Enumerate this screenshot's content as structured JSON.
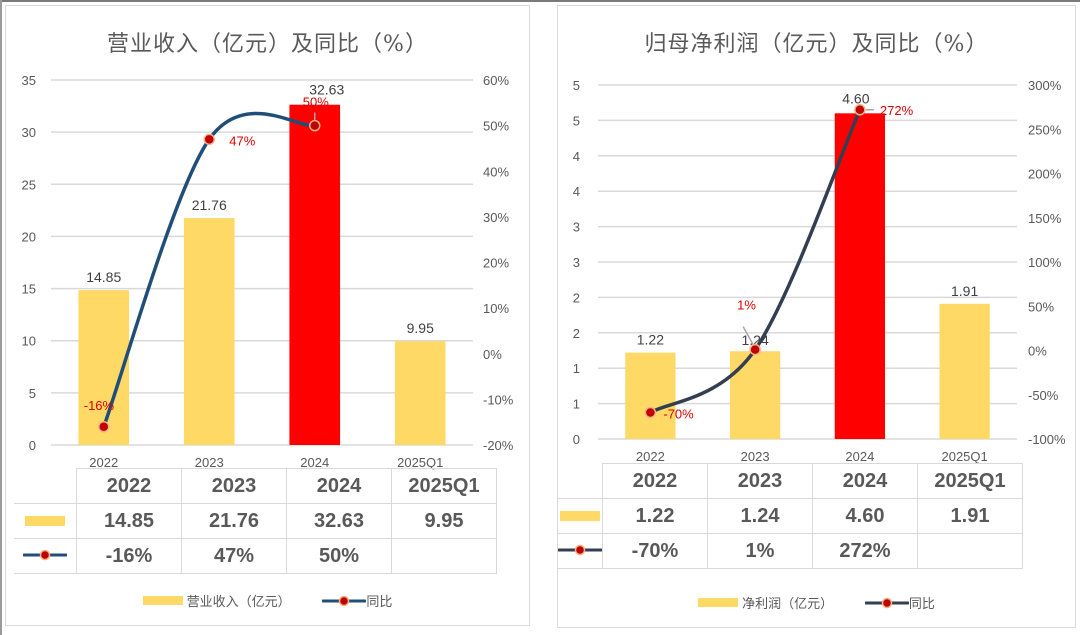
{
  "charts": {
    "left": {
      "title": "营业收入（亿元）及同比（%）",
      "categories": [
        "2022",
        "2023",
        "2024",
        "2025Q1"
      ],
      "bar_series_name": "营业收入（亿元）",
      "line_series_name": "同比",
      "bar_values": [
        14.85,
        21.76,
        32.63,
        9.95
      ],
      "bar_labels": [
        "14.85",
        "21.76",
        "32.63",
        "9.95"
      ],
      "bar_colors": [
        "#FFD966",
        "#FFD966",
        "#FF0000",
        "#FFD966"
      ],
      "line_values": [
        -16,
        47,
        50,
        null
      ],
      "line_labels": [
        "-16%",
        "47%",
        "50%",
        ""
      ],
      "left_axis": {
        "min": 0,
        "max": 35,
        "step": 5,
        "tick_labels": [
          "0",
          "5",
          "10",
          "15",
          "20",
          "25",
          "30",
          "35"
        ]
      },
      "right_axis": {
        "min": -20,
        "max": 60,
        "step": 10,
        "tick_labels": [
          "-20%",
          "-10%",
          "0%",
          "10%",
          "20%",
          "30%",
          "40%",
          "50%",
          "60%"
        ]
      },
      "table": {
        "header": [
          "2022",
          "2023",
          "2024",
          "2025Q1"
        ],
        "bar_row": [
          "14.85",
          "21.76",
          "32.63",
          "9.95"
        ],
        "line_row": [
          "-16%",
          "47%",
          "50%",
          ""
        ]
      }
    },
    "right": {
      "title": "归母净利润（亿元）及同比（%）",
      "categories": [
        "2022",
        "2023",
        "2024",
        "2025Q1"
      ],
      "bar_series_name": "净利润（亿元）",
      "line_series_name": "同比",
      "bar_values": [
        1.22,
        1.24,
        4.6,
        1.91
      ],
      "bar_labels": [
        "1.22",
        "1.24",
        "4.60",
        "1.91"
      ],
      "bar_colors": [
        "#FFD966",
        "#FFD966",
        "#FF0000",
        "#FFD966"
      ],
      "line_values": [
        -70,
        1,
        272,
        null
      ],
      "line_labels": [
        "-70%",
        "1%",
        "272%",
        ""
      ],
      "left_axis": {
        "min": 0,
        "max": 5,
        "step": 0.5,
        "tick_labels": [
          "0",
          "1",
          "1",
          "2",
          "2",
          "3",
          "3",
          "4",
          "4",
          "5",
          "5"
        ]
      },
      "right_axis": {
        "min": -100,
        "max": 300,
        "step": 50,
        "tick_labels": [
          "-100%",
          "-50%",
          "0%",
          "50%",
          "100%",
          "150%",
          "200%",
          "250%",
          "300%"
        ]
      },
      "table": {
        "header": [
          "2022",
          "2023",
          "2024",
          "2025Q1"
        ],
        "bar_row": [
          "1.22",
          "1.24",
          "4.60",
          "1.91"
        ],
        "line_row": [
          "-70%",
          "1%",
          "272%",
          ""
        ]
      }
    }
  },
  "colors": {
    "bar_default": "#FFD966",
    "bar_highlight": "#FF0000",
    "line_left": "#1F4E79",
    "line_right": "#333F50",
    "marker_fill": "#C00000",
    "marker_edge": "#F4B183",
    "pct_label": "#E00000"
  },
  "chart_data": [
    {
      "type": "bar",
      "title": "营业收入（亿元）及同比（%）",
      "categories": [
        "2022",
        "2023",
        "2024",
        "2025Q1"
      ],
      "series": [
        {
          "name": "营业收入（亿元）",
          "type": "bar",
          "axis": "left",
          "values": [
            14.85,
            21.76,
            32.63,
            9.95
          ]
        },
        {
          "name": "同比",
          "type": "line",
          "axis": "right",
          "unit": "%",
          "values": [
            -16,
            47,
            50,
            null
          ]
        }
      ],
      "ylim": [
        0,
        35
      ],
      "y2lim": [
        -20,
        60
      ],
      "xlabel": "",
      "ylabel": "",
      "grid": true,
      "legend": "bottom"
    },
    {
      "type": "bar",
      "title": "归母净利润（亿元）及同比（%）",
      "categories": [
        "2022",
        "2023",
        "2024",
        "2025Q1"
      ],
      "series": [
        {
          "name": "净利润（亿元）",
          "type": "bar",
          "axis": "left",
          "values": [
            1.22,
            1.24,
            4.6,
            1.91
          ]
        },
        {
          "name": "同比",
          "type": "line",
          "axis": "right",
          "unit": "%",
          "values": [
            -70,
            1,
            272,
            null
          ]
        }
      ],
      "ylim": [
        0,
        5
      ],
      "y2lim": [
        -100,
        300
      ],
      "xlabel": "",
      "ylabel": "",
      "grid": true,
      "legend": "bottom"
    }
  ]
}
